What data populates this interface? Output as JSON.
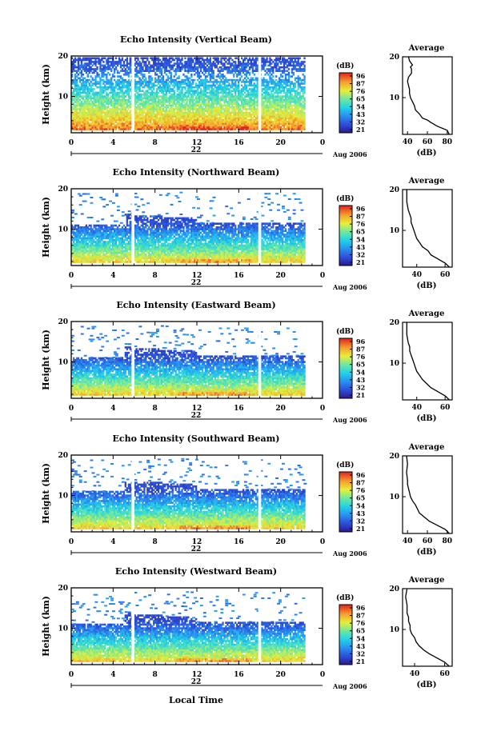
{
  "figure": {
    "xlabel": "Local Time",
    "colorbar_unit": "(dB)",
    "colorbar_ticks": [
      "96",
      "87",
      "76",
      "65",
      "54",
      "43",
      "32",
      "21"
    ],
    "colorbar_ticks_alt": [
      "96",
      "87",
      "76",
      "65",
      "54",
      "43",
      "32",
      "21"
    ],
    "date_label": "Aug 2006",
    "day_label": "22",
    "avg_title": "Average",
    "avg_xlabel": "(dB)",
    "ylabel": "Height (km)"
  },
  "chart_data": [
    {
      "type": "heatmap",
      "title": "Echo Intensity (Vertical Beam)",
      "ylabel": "Height (km)",
      "x_ticks": [
        "0",
        "4",
        "8",
        "12",
        "16",
        "20",
        "0"
      ],
      "xlim": [
        0,
        24
      ],
      "y_ticks": [
        "20",
        "10"
      ],
      "ylim": [
        1,
        20
      ],
      "colorbar": {
        "label": "(dB)",
        "min": 21,
        "max": 96
      },
      "gaps_hours": [
        5.9,
        18.0
      ],
      "profile": {
        "title": "Average",
        "xlabel": "(dB)",
        "x_ticks": [
          "40",
          "60",
          "80"
        ],
        "xlim": [
          35,
          85
        ],
        "points": [
          [
            82,
            1
          ],
          [
            80,
            2
          ],
          [
            70,
            3
          ],
          [
            63,
            4
          ],
          [
            60,
            4.5
          ],
          [
            55,
            5
          ],
          [
            52,
            6
          ],
          [
            48,
            7
          ],
          [
            47,
            8
          ],
          [
            45,
            9
          ],
          [
            43,
            10
          ],
          [
            42,
            11
          ],
          [
            42,
            12
          ],
          [
            41,
            13
          ],
          [
            40,
            14
          ],
          [
            41,
            15
          ],
          [
            44,
            16
          ],
          [
            44,
            17
          ],
          [
            43,
            17.5
          ],
          [
            45,
            18
          ],
          [
            42,
            19
          ],
          [
            41,
            20
          ]
        ]
      }
    },
    {
      "type": "heatmap",
      "title": "Echo Intensity (Northward Beam)",
      "ylabel": "Height (km)",
      "x_ticks": [
        "0",
        "4",
        "8",
        "12",
        "16",
        "20",
        "0"
      ],
      "xlim": [
        0,
        24
      ],
      "y_ticks": [
        "20",
        "10"
      ],
      "ylim": [
        1,
        20
      ],
      "colorbar": {
        "label": "(dB)",
        "min": 21,
        "max": 96
      },
      "gaps_hours": [
        5.9,
        18.0
      ],
      "profile": {
        "title": "Average",
        "xlabel": "(dB)",
        "x_ticks": [
          "40",
          "60"
        ],
        "xlim": [
          30,
          65
        ],
        "points": [
          [
            63,
            1
          ],
          [
            60,
            2
          ],
          [
            55,
            3
          ],
          [
            50,
            4
          ],
          [
            48,
            5
          ],
          [
            44,
            6
          ],
          [
            42,
            7
          ],
          [
            40,
            8
          ],
          [
            39,
            9
          ],
          [
            38,
            10
          ],
          [
            37,
            11
          ],
          [
            36,
            12
          ],
          [
            36,
            13
          ],
          [
            35,
            14
          ],
          [
            34,
            15
          ],
          [
            33,
            17
          ],
          [
            33,
            20
          ]
        ]
      }
    },
    {
      "type": "heatmap",
      "title": "Echo Intensity (Eastward Beam)",
      "ylabel": "Height (km)",
      "x_ticks": [
        "0",
        "4",
        "8",
        "12",
        "16",
        "20",
        "0"
      ],
      "xlim": [
        0,
        24
      ],
      "y_ticks": [
        "20",
        "10"
      ],
      "ylim": [
        1,
        20
      ],
      "colorbar": {
        "label": "(dB)",
        "min": 21,
        "max": 96
      },
      "gaps_hours": [
        5.9,
        18.0
      ],
      "profile": {
        "title": "Average",
        "xlabel": "(dB)",
        "x_ticks": [
          "40",
          "60"
        ],
        "xlim": [
          30,
          65
        ],
        "points": [
          [
            63,
            1
          ],
          [
            60,
            2
          ],
          [
            55,
            3
          ],
          [
            50,
            4
          ],
          [
            47,
            5
          ],
          [
            44,
            6
          ],
          [
            42,
            7
          ],
          [
            40,
            8
          ],
          [
            39,
            9
          ],
          [
            38,
            10
          ],
          [
            37,
            11
          ],
          [
            36,
            12
          ],
          [
            35,
            13
          ],
          [
            35,
            14
          ],
          [
            34,
            15
          ],
          [
            33,
            17
          ],
          [
            33,
            20
          ]
        ]
      }
    },
    {
      "type": "heatmap",
      "title": "Echo Intensity (Southward Beam)",
      "ylabel": "Height (km)",
      "x_ticks": [
        "0",
        "4",
        "8",
        "12",
        "16",
        "20",
        "0"
      ],
      "xlim": [
        0,
        24
      ],
      "y_ticks": [
        "20",
        "10"
      ],
      "ylim": [
        1,
        20
      ],
      "colorbar": {
        "label": "(dB)",
        "min": 21,
        "max": 96
      },
      "gaps_hours": [
        5.9,
        18.0
      ],
      "profile": {
        "title": "Average",
        "xlabel": "(dB)",
        "x_ticks": [
          "40",
          "60",
          "80"
        ],
        "xlim": [
          35,
          85
        ],
        "points": [
          [
            82,
            1
          ],
          [
            78,
            2
          ],
          [
            70,
            3
          ],
          [
            62,
            4
          ],
          [
            57,
            5
          ],
          [
            52,
            6
          ],
          [
            50,
            7
          ],
          [
            48,
            8
          ],
          [
            45,
            9
          ],
          [
            43,
            10
          ],
          [
            42,
            11
          ],
          [
            41,
            12
          ],
          [
            40,
            13
          ],
          [
            40,
            14
          ],
          [
            39,
            16
          ],
          [
            40,
            18
          ],
          [
            39,
            20
          ]
        ]
      }
    },
    {
      "type": "heatmap",
      "title": "Echo Intensity (Westward Beam)",
      "ylabel": "Height (km)",
      "x_ticks": [
        "0",
        "4",
        "8",
        "12",
        "16",
        "20",
        "0"
      ],
      "xlim": [
        0,
        24
      ],
      "y_ticks": [
        "20",
        "10"
      ],
      "ylim": [
        1,
        20
      ],
      "colorbar": {
        "label": "(dB)",
        "min": 21,
        "max": 96
      },
      "gaps_hours": [
        5.9,
        18.0
      ],
      "profile": {
        "title": "Average",
        "xlabel": "(dB)",
        "x_ticks": [
          "40",
          "60"
        ],
        "xlim": [
          32,
          65
        ],
        "points": [
          [
            63,
            1
          ],
          [
            60,
            2
          ],
          [
            55,
            3
          ],
          [
            50,
            4
          ],
          [
            46,
            5
          ],
          [
            43,
            6
          ],
          [
            41,
            7
          ],
          [
            40,
            8
          ],
          [
            38,
            9
          ],
          [
            37,
            10
          ],
          [
            37,
            11
          ],
          [
            36,
            12
          ],
          [
            36,
            13
          ],
          [
            35,
            14
          ],
          [
            35,
            16
          ],
          [
            34,
            18
          ],
          [
            35,
            20
          ]
        ]
      }
    }
  ]
}
